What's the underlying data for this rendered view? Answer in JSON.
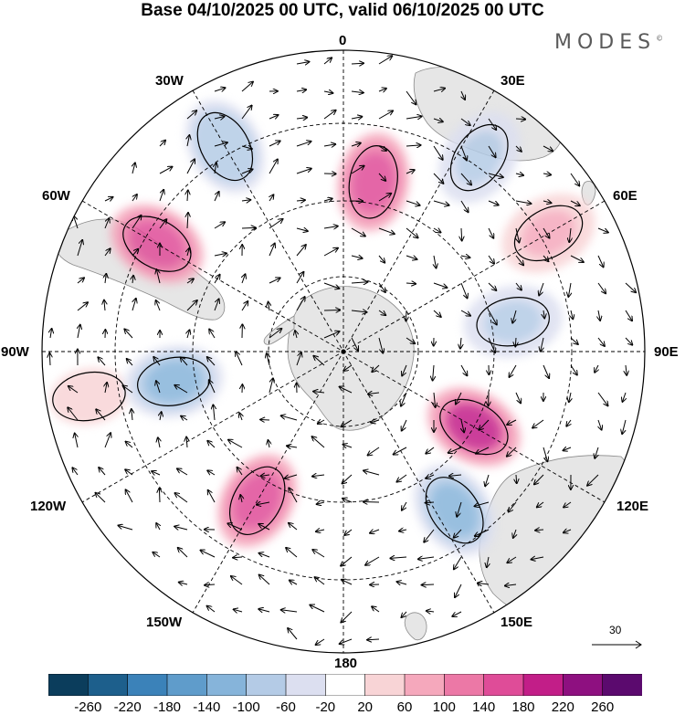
{
  "title": "Base 04/10/2025 00 UTC, valid 06/10/2025 00 UTC",
  "brand": "MODES",
  "brand_mark": "©",
  "longitude_labels": [
    "0",
    "30E",
    "60E",
    "90E",
    "120E",
    "150E",
    "180",
    "150W",
    "120W",
    "90W",
    "60W",
    "30W"
  ],
  "vector_reference": {
    "label": "30"
  },
  "colorbar": {
    "ticks": [
      "-260",
      "-220",
      "-180",
      "-140",
      "-100",
      "-60",
      "-20",
      "20",
      "60",
      "100",
      "140",
      "180",
      "220",
      "260"
    ],
    "colors": [
      "#0b3d5c",
      "#1d5f8c",
      "#3b82b9",
      "#5f9ccb",
      "#86b4da",
      "#b4cbe6",
      "#dcdff0",
      "#ffffff",
      "#f8d4d6",
      "#f5a8bc",
      "#ec78a6",
      "#df4c98",
      "#c21e88",
      "#8e1080",
      "#5b0a6e"
    ]
  },
  "anomalies": [
    {
      "name": "positive-anomaly-west-atlantic",
      "lon": -60,
      "colat": 50,
      "value": 150
    },
    {
      "name": "positive-anomaly-south-atlantic",
      "lon": 10,
      "colat": 40,
      "value": 150
    },
    {
      "name": "positive-anomaly-indian-ocean-east",
      "lon": 120,
      "colat": 35,
      "value": 180
    },
    {
      "name": "positive-anomaly-pacific",
      "lon": -150,
      "colat": 40,
      "value": 160
    },
    {
      "name": "positive-anomaly-weak-south-africa",
      "lon": 60,
      "colat": 55,
      "value": 60
    },
    {
      "name": "positive-anomaly-weak-west",
      "lon": -100,
      "colat": 60,
      "value": 40
    },
    {
      "name": "negative-anomaly-south-america",
      "lon": -30,
      "colat": 55,
      "value": -100
    },
    {
      "name": "negative-anomaly-indian-ocean",
      "lon": 80,
      "colat": 40,
      "value": -80
    },
    {
      "name": "negative-anomaly-southern-ocean-east",
      "lon": 145,
      "colat": 45,
      "value": -140
    },
    {
      "name": "negative-anomaly-pacific-west",
      "lon": -100,
      "colat": 40,
      "value": -140
    },
    {
      "name": "negative-anomaly-africa",
      "lon": 35,
      "colat": 55,
      "value": -80
    }
  ]
}
